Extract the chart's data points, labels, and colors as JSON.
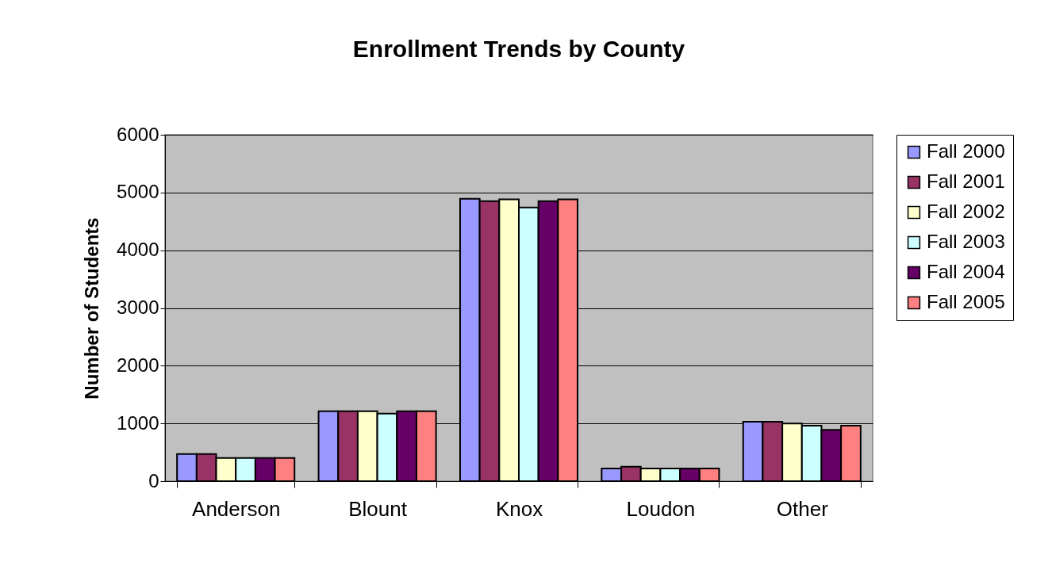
{
  "chart_data": {
    "type": "bar",
    "title": "Enrollment Trends by County",
    "ylabel": "Number of Students",
    "categories": [
      "Anderson",
      "Blount",
      "Knox",
      "Loudon",
      "Other"
    ],
    "series": [
      {
        "name": "Fall 2000",
        "color": "#9999ff",
        "values": [
          470,
          1210,
          4890,
          220,
          1030
        ]
      },
      {
        "name": "Fall 2001",
        "color": "#993366",
        "values": [
          470,
          1210,
          4850,
          250,
          1030
        ]
      },
      {
        "name": "Fall 2002",
        "color": "#ffffcc",
        "values": [
          400,
          1210,
          4880,
          220,
          1000
        ]
      },
      {
        "name": "Fall 2003",
        "color": "#ccffff",
        "values": [
          400,
          1170,
          4740,
          220,
          960
        ]
      },
      {
        "name": "Fall 2004",
        "color": "#660066",
        "values": [
          400,
          1210,
          4850,
          220,
          890
        ]
      },
      {
        "name": "Fall 2005",
        "color": "#ff8080",
        "values": [
          400,
          1210,
          4880,
          220,
          960
        ]
      }
    ],
    "ylim": [
      0,
      6000
    ],
    "yticks": [
      0,
      1000,
      2000,
      3000,
      4000,
      5000,
      6000
    ],
    "grid": "y",
    "legend": "right"
  }
}
